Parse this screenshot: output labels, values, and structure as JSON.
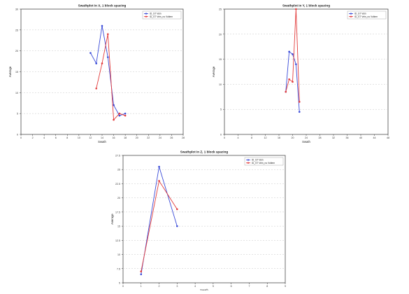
{
  "chart_data": [
    {
      "type": "line",
      "title": "Swathplot in X, 1 block spacing",
      "xlabel": "Swath",
      "ylabel": "Average",
      "xlim": [
        0,
        28
      ],
      "ylim": [
        0,
        30
      ],
      "xticks": [
        0,
        2,
        4,
        6,
        8,
        10,
        12,
        14,
        16,
        18,
        20,
        22,
        24,
        26,
        28
      ],
      "yticks": [
        0,
        5,
        10,
        15,
        20,
        25,
        30
      ],
      "legend_position": "top-right",
      "grid": "horizontal-dashed",
      "series": [
        {
          "name": "ID_ST Vein",
          "color": "#3a4bd8",
          "x": [
            12,
            13,
            14,
            15,
            16,
            17,
            18
          ],
          "y": [
            19.5,
            17,
            26,
            18.5,
            7,
            4.5,
            5
          ]
        },
        {
          "name": "ID_ST Vein_no Voltem",
          "color": "#e23b3b",
          "x": [
            13,
            14,
            15,
            16,
            17,
            18
          ],
          "y": [
            11,
            17,
            24,
            3.5,
            5,
            4.5
          ]
        }
      ]
    },
    {
      "type": "line",
      "title": "Swathplot in Y, 1 block spacing",
      "xlabel": "Swath",
      "ylabel": "Average",
      "xlim": [
        0,
        48
      ],
      "ylim": [
        0,
        25
      ],
      "xticks": [
        0,
        4,
        8,
        12,
        16,
        20,
        24,
        28,
        32,
        36,
        40,
        44,
        48
      ],
      "yticks": [
        0,
        5,
        10,
        15,
        20,
        25
      ],
      "legend_position": "top-right",
      "grid": "horizontal-dashed",
      "series": [
        {
          "name": "ID_ST Vein",
          "color": "#3a4bd8",
          "x": [
            18,
            19,
            20,
            21,
            22
          ],
          "y": [
            8.5,
            16.5,
            16,
            14,
            4.5
          ]
        },
        {
          "name": "ID_ST Vein_no Voltem",
          "color": "#e23b3b",
          "x": [
            18,
            19,
            20,
            21,
            22
          ],
          "y": [
            8.5,
            11,
            10.5,
            25,
            6.5
          ]
        }
      ]
    },
    {
      "type": "line",
      "title": "Swathplot in Z, 1 block spacing",
      "xlabel": "Swath",
      "ylabel": "Average",
      "xlim": [
        0,
        9
      ],
      "ylim": [
        5,
        27.5
      ],
      "xticks": [
        0,
        1,
        2,
        3,
        4,
        5,
        6,
        7,
        8,
        9
      ],
      "yticks": [
        5,
        7.5,
        10,
        12.5,
        15,
        17.5,
        20,
        22.5,
        25,
        27.5
      ],
      "legend_position": "top-right",
      "grid": "horizontal-dashed",
      "series": [
        {
          "name": "ID_ST Vein",
          "color": "#3a4bd8",
          "x": [
            1,
            2,
            3
          ],
          "y": [
            6.5,
            25.5,
            15
          ]
        },
        {
          "name": "ID_ST Vein_no Voltem",
          "color": "#e23b3b",
          "x": [
            1,
            2,
            3
          ],
          "y": [
            7,
            23,
            18
          ]
        }
      ]
    }
  ]
}
